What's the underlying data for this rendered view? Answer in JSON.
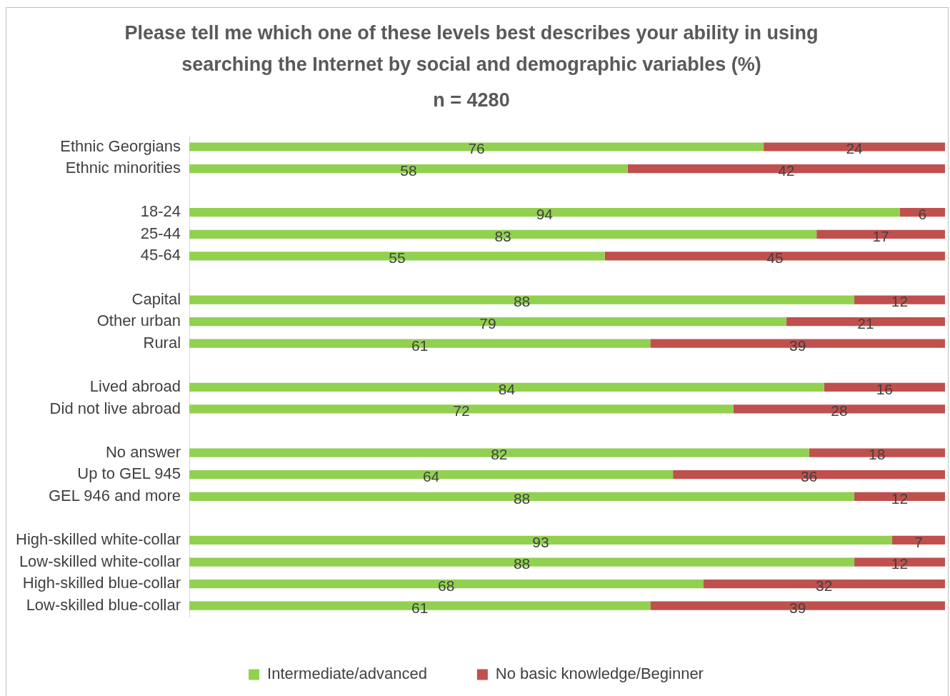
{
  "chart_data": {
    "type": "bar",
    "orientation": "horizontal",
    "stacked": true,
    "data_labels": true,
    "legend": "bottom",
    "title": "Please tell me which one of these levels best describes your ability in using searching the Internet by social and demographic variables (%)",
    "subtitle": "n = 4280",
    "categories": [
      "Ethnic Georgians",
      "Ethnic minorities",
      null,
      "18-24",
      "25-44",
      "45-64",
      null,
      "Capital",
      "Other urban",
      "Rural",
      null,
      "Lived abroad",
      "Did not live abroad",
      null,
      "No answer",
      "Up to GEL 945",
      "GEL 946 and more",
      null,
      "High-skilled white-collar",
      "Low-skilled white-collar",
      "High-skilled blue-collar",
      "Low-skilled blue-collar"
    ],
    "series": [
      {
        "name": "Intermediate/advanced",
        "color": "#92d050",
        "values": [
          76,
          58,
          null,
          94,
          83,
          55,
          null,
          88,
          79,
          61,
          null,
          84,
          72,
          null,
          82,
          64,
          88,
          null,
          93,
          88,
          68,
          61
        ]
      },
      {
        "name": "No basic knowledge/Beginner",
        "color": "#c0504d",
        "values": [
          24,
          42,
          null,
          6,
          17,
          45,
          null,
          12,
          21,
          39,
          null,
          16,
          28,
          null,
          18,
          36,
          12,
          null,
          7,
          12,
          32,
          39
        ]
      }
    ]
  }
}
